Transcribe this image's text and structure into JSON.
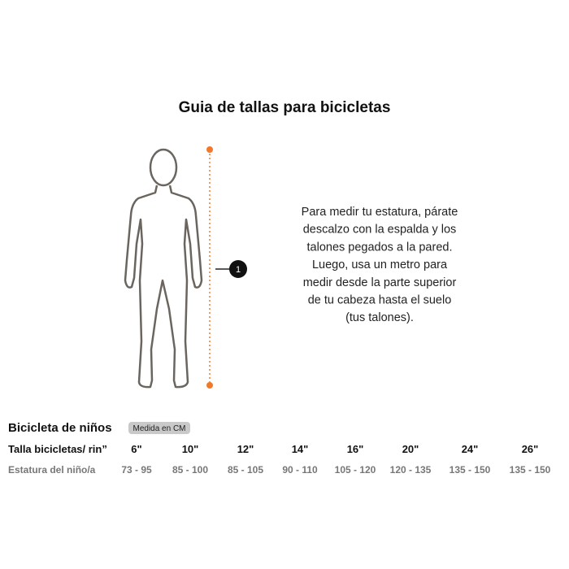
{
  "header": {
    "title": "Guia de tallas para bicicletas"
  },
  "figure": {
    "marker": "1"
  },
  "description": [
    "Para medir tu estatura, párate",
    "descalzo con la espalda y los",
    "talones pegados a la pared.",
    "Luego, usa un metro para",
    "medir desde la parte superior",
    "de tu cabeza hasta el suelo",
    "(tus talones)."
  ],
  "table": {
    "title": "Bicicleta de niños",
    "badge": "Medida en CM",
    "rows": [
      {
        "label": "Talla bicicletas/ rin”",
        "cells": [
          "6\"",
          "10\"",
          "12\"",
          "14\"",
          "16\"",
          "20\"",
          "24\"",
          "26\""
        ]
      },
      {
        "label": "Estatura  del niño/a",
        "cells": [
          "73 - 95",
          "85 - 100",
          "85 - 105",
          "90 - 110",
          "105 - 120",
          "120 - 135",
          "135 - 150",
          "135 - 150"
        ]
      }
    ]
  }
}
